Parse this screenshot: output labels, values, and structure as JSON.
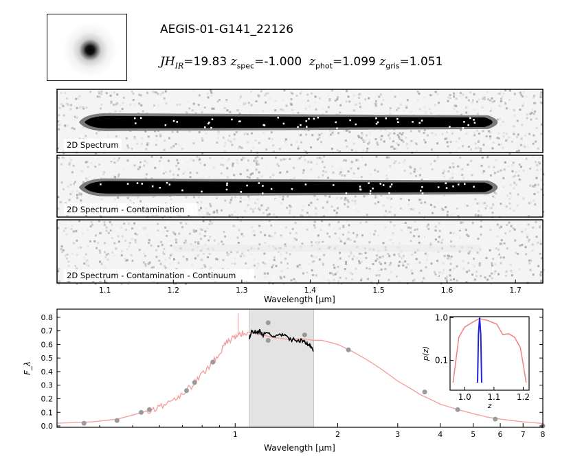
{
  "header": {
    "object_id": "AEGIS-01-G141_22126",
    "mag": {
      "symbol": "JH",
      "sub": "IR",
      "value": "=19.83"
    },
    "z_spec": {
      "symbol": "z",
      "sub": "spec",
      "value": "=-1.000"
    },
    "z_phot": {
      "symbol": "z",
      "sub": "phot",
      "value": "=1.099"
    },
    "z_gris": {
      "symbol": "z",
      "sub": "gris",
      "value": "=1.051"
    }
  },
  "panels": [
    {
      "label": "2D Spectrum"
    },
    {
      "label": "2D Spectrum - Contamination"
    },
    {
      "label": "2D Spectrum - Contamination - Continuum"
    }
  ],
  "colors": {
    "model": "#f4a0a0",
    "spectrum": "#000000",
    "photometry": "#9a9a9a",
    "pz_narrow": "#2222dd",
    "pz_broad": "#f08080",
    "band": "#e3e3e3"
  },
  "chart_data": [
    {
      "type": "heatmap",
      "panel": "2d-spectra",
      "xlabel": "Wavelength [μm]",
      "x_ticks": [
        "1.1",
        "1.2",
        "1.3",
        "1.4",
        "1.5",
        "1.6",
        "1.7"
      ],
      "xlim": [
        1.03,
        1.74
      ],
      "trace_extent": [
        1.07,
        1.68
      ],
      "titles": [
        "2D Spectrum",
        "2D Spectrum - Contamination",
        "2D Spectrum - Contamination - Continuum"
      ]
    },
    {
      "type": "line",
      "panel": "sed",
      "xscale": "log",
      "xlabel": "Wavelength [μm]",
      "ylabel": "F_λ",
      "xlim": [
        0.3,
        8
      ],
      "ylim": [
        -0.01,
        0.86
      ],
      "x_ticks": [
        "1",
        "2",
        "3",
        "4",
        "5",
        "6",
        "7",
        "8"
      ],
      "y_ticks": [
        "0.0",
        "0.1",
        "0.2",
        "0.3",
        "0.4",
        "0.5",
        "0.6",
        "0.7",
        "0.8"
      ],
      "grism_band": [
        1.1,
        1.7
      ],
      "series": [
        {
          "kind": "model",
          "x": [
            0.3,
            0.38,
            0.45,
            0.5,
            0.55,
            0.6,
            0.65,
            0.7,
            0.75,
            0.8,
            0.85,
            0.9,
            0.95,
            1.0,
            1.05,
            1.1,
            1.2,
            1.3,
            1.4,
            1.5,
            1.6,
            1.7,
            1.8,
            2.0,
            2.2,
            2.5,
            3.0,
            3.5,
            4.0,
            4.5,
            5.0,
            5.5,
            6.0,
            7.0,
            8.0
          ],
          "y": [
            0.02,
            0.03,
            0.05,
            0.08,
            0.11,
            0.14,
            0.19,
            0.24,
            0.3,
            0.38,
            0.46,
            0.54,
            0.62,
            0.66,
            0.68,
            0.69,
            0.67,
            0.65,
            0.64,
            0.64,
            0.64,
            0.63,
            0.63,
            0.6,
            0.55,
            0.47,
            0.33,
            0.23,
            0.16,
            0.12,
            0.09,
            0.065,
            0.05,
            0.03,
            0.018
          ]
        },
        {
          "kind": "grism-spectrum",
          "x": [
            1.1,
            1.12,
            1.15,
            1.18,
            1.2,
            1.25,
            1.3,
            1.35,
            1.4,
            1.45,
            1.5,
            1.55,
            1.6,
            1.65,
            1.68,
            1.7
          ],
          "y": [
            0.64,
            0.7,
            0.69,
            0.7,
            0.67,
            0.68,
            0.66,
            0.67,
            0.66,
            0.64,
            0.63,
            0.63,
            0.62,
            0.6,
            0.57,
            0.54
          ]
        }
      ],
      "photometry": {
        "x": [
          0.36,
          0.45,
          0.53,
          0.56,
          0.72,
          0.76,
          0.86,
          1.25,
          1.25,
          1.6,
          2.15,
          3.6,
          4.5,
          5.8,
          8.0
        ],
        "y": [
          0.02,
          0.04,
          0.1,
          0.12,
          0.26,
          0.32,
          0.47,
          0.76,
          0.63,
          0.67,
          0.56,
          0.25,
          0.12,
          0.05,
          0.0
        ]
      }
    },
    {
      "type": "line",
      "panel": "pz-inset",
      "xlabel": "z",
      "ylabel": "p(z)",
      "yscale": "log",
      "xlim": [
        0.95,
        1.22
      ],
      "ylim": [
        0.02,
        1.05
      ],
      "x_ticks": [
        "1.0",
        "1.1",
        "1.2"
      ],
      "y_ticks": [
        "1.0",
        "0.1"
      ],
      "series": [
        {
          "kind": "broad",
          "x": [
            0.96,
            0.97,
            0.98,
            1.0,
            1.03,
            1.05,
            1.08,
            1.11,
            1.13,
            1.15,
            1.17,
            1.19,
            1.2,
            1.21
          ],
          "y": [
            0.03,
            0.1,
            0.35,
            0.6,
            0.8,
            0.95,
            0.85,
            0.7,
            0.4,
            0.42,
            0.35,
            0.2,
            0.08,
            0.03
          ]
        },
        {
          "kind": "narrow",
          "x": [
            1.044,
            1.047,
            1.051,
            1.055,
            1.058
          ],
          "y": [
            0.03,
            0.4,
            1.0,
            0.4,
            0.03
          ]
        }
      ]
    }
  ]
}
